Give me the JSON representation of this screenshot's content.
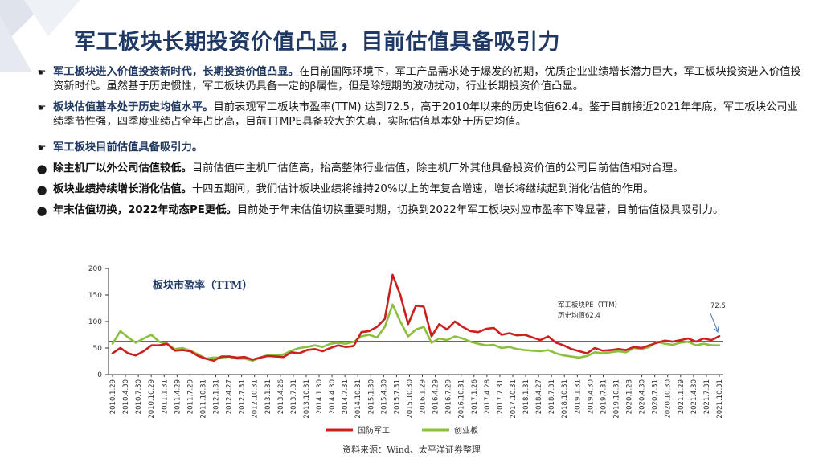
{
  "slide": {
    "title": "军工板块长期投资价值凸显，目前估值具备吸引力",
    "source": "资料来源：Wind、太平洋证券整理"
  },
  "bullets": [
    {
      "marker": "arrow",
      "lead": "军工板块进入价值投资新时代，长期投资价值凸显。",
      "text": "在目前国际环境下，军工产品需求处于爆发的初期，优质企业业绩增长潜力巨大，军工板块投资进入价值投资新时代。虽然基于历史惯性，军工板块仍具备一定的β属性，但是除短期的波动扰动，行业长期投资价值凸显。"
    },
    {
      "marker": "arrow",
      "lead": "板块估值基本处于历史均值水平。",
      "text": "目前表观军工板块市盈率(TTM) 达到72.5，高于2010年以来的历史均值62.4。鉴于目前接近2021年年底，军工板块公司业绩季节性强，四季度业绩占全年占比高，目前TTMPE具备较大的失真，实际估值基本处于历史均值。"
    },
    {
      "marker": "arrow",
      "lead": "军工板块目前估值具备吸引力。",
      "text": ""
    },
    {
      "marker": "dot",
      "lead": "除主机厂以外公司估值较低。",
      "text": "目前估值中主机厂估值高，抬高整体行业估值，除主机厂外其他具备投资价值的公司目前估值相对合理。"
    },
    {
      "marker": "dot",
      "lead": "板块业绩持续增长消化估值。",
      "text": "十四五期间，我们估计板块业绩将维持20%以上的年复合增速，增长将继续起到消化估值的作用。"
    },
    {
      "marker": "dot",
      "lead": "年末估值切换，2022年动态PE更低。",
      "text": "目前处于年末估值切换重要时期，切换到2022年军工板块对应市盈率下降显著，目前估值极具吸引力。"
    }
  ],
  "chart_data": {
    "type": "line",
    "title": "板块市盈率（TTM）",
    "ylim": [
      0,
      200
    ],
    "yticks": [
      0,
      50,
      100,
      150,
      200
    ],
    "grid": false,
    "legend_position": "bottom",
    "x_ticks": [
      "2010.1.29",
      "2010.4.30",
      "2010.7.30",
      "2010.10.29",
      "2011.1.31",
      "2011.4.29",
      "2011.7.29",
      "2011.10.31",
      "2012.1.31",
      "2012.4.27",
      "2012.7.31",
      "2012.10.31",
      "2013.1.31",
      "2013.4.26",
      "2013.7.31",
      "2013.10.31",
      "2014.1.30",
      "2014.4.30",
      "2014.7.31",
      "2014.10.31",
      "2015.1.30",
      "2015.4.30",
      "2015.7.31",
      "2015.10.30",
      "2016.1.29",
      "2016.4.29",
      "2016.7.29",
      "2016.10.31",
      "2017.1.26",
      "2017.4.28",
      "2017.7.31",
      "2017.10.31",
      "2018.1.31",
      "2018.4.27",
      "2018.7.31",
      "2018.10.31",
      "2019.1.31",
      "2019.4.30",
      "2019.7.31",
      "2019.10.31",
      "2020.1.23",
      "2020.4.30",
      "2020.7.31",
      "2020.10.30",
      "2021.1.29",
      "2021.4.30",
      "2021.7.31",
      "2021.10.31"
    ],
    "series": [
      {
        "name": "国防军工",
        "color": "#cc1f1f",
        "values": [
          40,
          50,
          40,
          36,
          44,
          55,
          55,
          58,
          45,
          46,
          44,
          35,
          30,
          26,
          34,
          34,
          32,
          33,
          28,
          32,
          35,
          34,
          33,
          42,
          40,
          46,
          48,
          44,
          50,
          55,
          52,
          54,
          80,
          82,
          90,
          105,
          188,
          150,
          95,
          130,
          128,
          72,
          95,
          85,
          100,
          90,
          82,
          80,
          86,
          88,
          75,
          78,
          74,
          75,
          70,
          65,
          72,
          60,
          55,
          48,
          44,
          40,
          50,
          45,
          46,
          48,
          46,
          52,
          50,
          55,
          60,
          64,
          62,
          65,
          68,
          62,
          68,
          65,
          72.5
        ]
      },
      {
        "name": "创业板",
        "color": "#8dbf3f",
        "values": [
          58,
          82,
          70,
          60,
          68,
          75,
          62,
          58,
          48,
          50,
          45,
          38,
          30,
          32,
          32,
          34,
          30,
          30,
          26,
          32,
          37,
          36,
          38,
          45,
          50,
          52,
          55,
          52,
          58,
          60,
          58,
          62,
          72,
          75,
          70,
          90,
          132,
          100,
          72,
          85,
          90,
          60,
          68,
          65,
          72,
          68,
          62,
          58,
          55,
          56,
          50,
          52,
          48,
          46,
          45,
          44,
          46,
          40,
          36,
          34,
          32,
          35,
          42,
          40,
          42,
          44,
          42,
          50,
          48,
          52,
          62,
          58,
          56,
          60,
          62,
          55,
          58,
          55,
          55
        ]
      }
    ],
    "reference_line": {
      "label": "历史均值62.4",
      "value": 62.4,
      "color": "#7b52a8"
    },
    "annotation": {
      "label": "军工板块PE（TTM）",
      "value_label": "72.5"
    }
  }
}
